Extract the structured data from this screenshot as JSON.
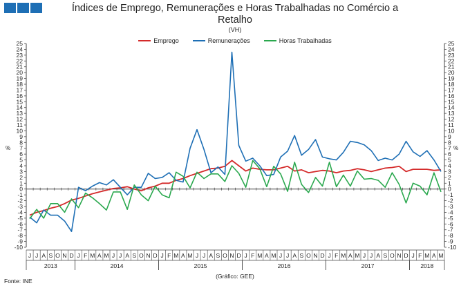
{
  "header": {
    "title": "Índices de Emprego, Remunerações e Horas Trabalhadas no Comércio a Retalho",
    "subtitle": "(VH)"
  },
  "brand_color": "#1e6fb5",
  "chart_data": {
    "type": "line",
    "title": "Índices de Emprego, Remunerações e Horas Trabalhadas no Comércio a Retalho",
    "subtitle": "(VH)",
    "ylabel_left": "%",
    "ylabel_right": "%",
    "ylim": [
      -10,
      25
    ],
    "yticks": [
      -10,
      -9,
      -8,
      -7,
      -6,
      -5,
      -4,
      -3,
      -2,
      -1,
      0,
      1,
      2,
      3,
      4,
      5,
      6,
      7,
      8,
      9,
      10,
      11,
      12,
      13,
      14,
      15,
      16,
      17,
      18,
      19,
      20,
      21,
      22,
      23,
      24,
      25
    ],
    "grid": false,
    "legend_position": "top",
    "months": [
      "J",
      "J",
      "A",
      "S",
      "O",
      "N",
      "D",
      "J",
      "F",
      "M",
      "A",
      "M",
      "J",
      "J",
      "A",
      "S",
      "O",
      "N",
      "D",
      "J",
      "F",
      "M",
      "A",
      "M",
      "J",
      "J",
      "A",
      "S",
      "O",
      "N",
      "D",
      "J",
      "F",
      "M",
      "A",
      "M",
      "J",
      "J",
      "A",
      "S",
      "O",
      "N",
      "D",
      "J",
      "F",
      "M",
      "A",
      "M",
      "J",
      "J",
      "A",
      "S",
      "O",
      "N",
      "D",
      "J",
      "F",
      "M",
      "A",
      "M"
    ],
    "years": [
      {
        "label": "2013",
        "start": 0,
        "count": 7
      },
      {
        "label": "2014",
        "start": 7,
        "count": 12
      },
      {
        "label": "2015",
        "start": 19,
        "count": 12
      },
      {
        "label": "2016",
        "start": 31,
        "count": 12
      },
      {
        "label": "2017",
        "start": 43,
        "count": 12
      },
      {
        "label": "2018",
        "start": 55,
        "count": 5
      }
    ],
    "series": [
      {
        "name": "Emprego",
        "color": "#d42a2a",
        "values": [
          -4.5,
          -4.0,
          -3.7,
          -3.3,
          -3.0,
          -2.5,
          -1.9,
          -1.6,
          -1.2,
          -0.8,
          -0.5,
          -0.2,
          0.1,
          0.2,
          0.4,
          0.0,
          -0.3,
          0.2,
          0.5,
          1.0,
          1.0,
          1.5,
          1.8,
          2.3,
          2.7,
          3.1,
          3.5,
          3.6,
          3.9,
          4.9,
          4.0,
          3.1,
          3.6,
          3.4,
          3.3,
          3.3,
          3.6,
          3.9,
          3.1,
          3.3,
          2.8,
          3.0,
          3.2,
          3.1,
          2.8,
          3.1,
          3.2,
          3.5,
          3.3,
          3.0,
          3.3,
          3.6,
          3.7,
          3.9,
          3.0,
          3.4,
          3.4,
          3.4,
          3.2,
          3.3
        ]
      },
      {
        "name": "Remunerações",
        "color": "#1e6fb5",
        "values": [
          -4.8,
          -5.8,
          -3.6,
          -4.5,
          -4.5,
          -5.5,
          -7.3,
          0.3,
          -0.3,
          0.5,
          1.1,
          0.7,
          1.6,
          0.3,
          -1.0,
          0.3,
          0.3,
          2.7,
          1.8,
          2.0,
          2.8,
          1.5,
          1.2,
          7.0,
          10.2,
          6.8,
          2.8,
          3.8,
          2.5,
          23.5,
          7.5,
          4.8,
          5.3,
          4.0,
          2.3,
          2.5,
          5.5,
          6.5,
          9.2,
          5.8,
          6.8,
          8.5,
          5.5,
          5.2,
          5.0,
          6.3,
          8.2,
          8.0,
          7.6,
          6.6,
          4.9,
          5.3,
          5.0,
          6.0,
          8.2,
          6.4,
          5.6,
          6.6,
          5.0,
          3.0
        ]
      },
      {
        "name": "Horas Trabalhadas",
        "color": "#2aa84e",
        "values": [
          -5.1,
          -3.5,
          -5.0,
          -2.5,
          -2.5,
          -4.0,
          -1.7,
          -3.2,
          -0.7,
          -1.5,
          -2.5,
          -3.6,
          -0.5,
          -0.5,
          -3.5,
          0.7,
          -1.0,
          -2.0,
          0.5,
          -1.0,
          -1.5,
          2.9,
          2.2,
          0.2,
          2.9,
          1.8,
          2.6,
          2.6,
          1.3,
          4.0,
          2.7,
          0.3,
          4.9,
          3.5,
          0.4,
          3.9,
          2.6,
          -0.4,
          4.6,
          0.8,
          -0.6,
          2.0,
          0.5,
          4.6,
          0.4,
          2.4,
          0.5,
          3.1,
          1.7,
          1.8,
          1.5,
          0.3,
          2.8,
          0.8,
          -2.4,
          1.0,
          0.5,
          -1.0,
          2.8,
          -0.5
        ]
      }
    ]
  },
  "footer": {
    "source": "Fonte: INE",
    "credit": "(Gráfico: GEE)"
  }
}
